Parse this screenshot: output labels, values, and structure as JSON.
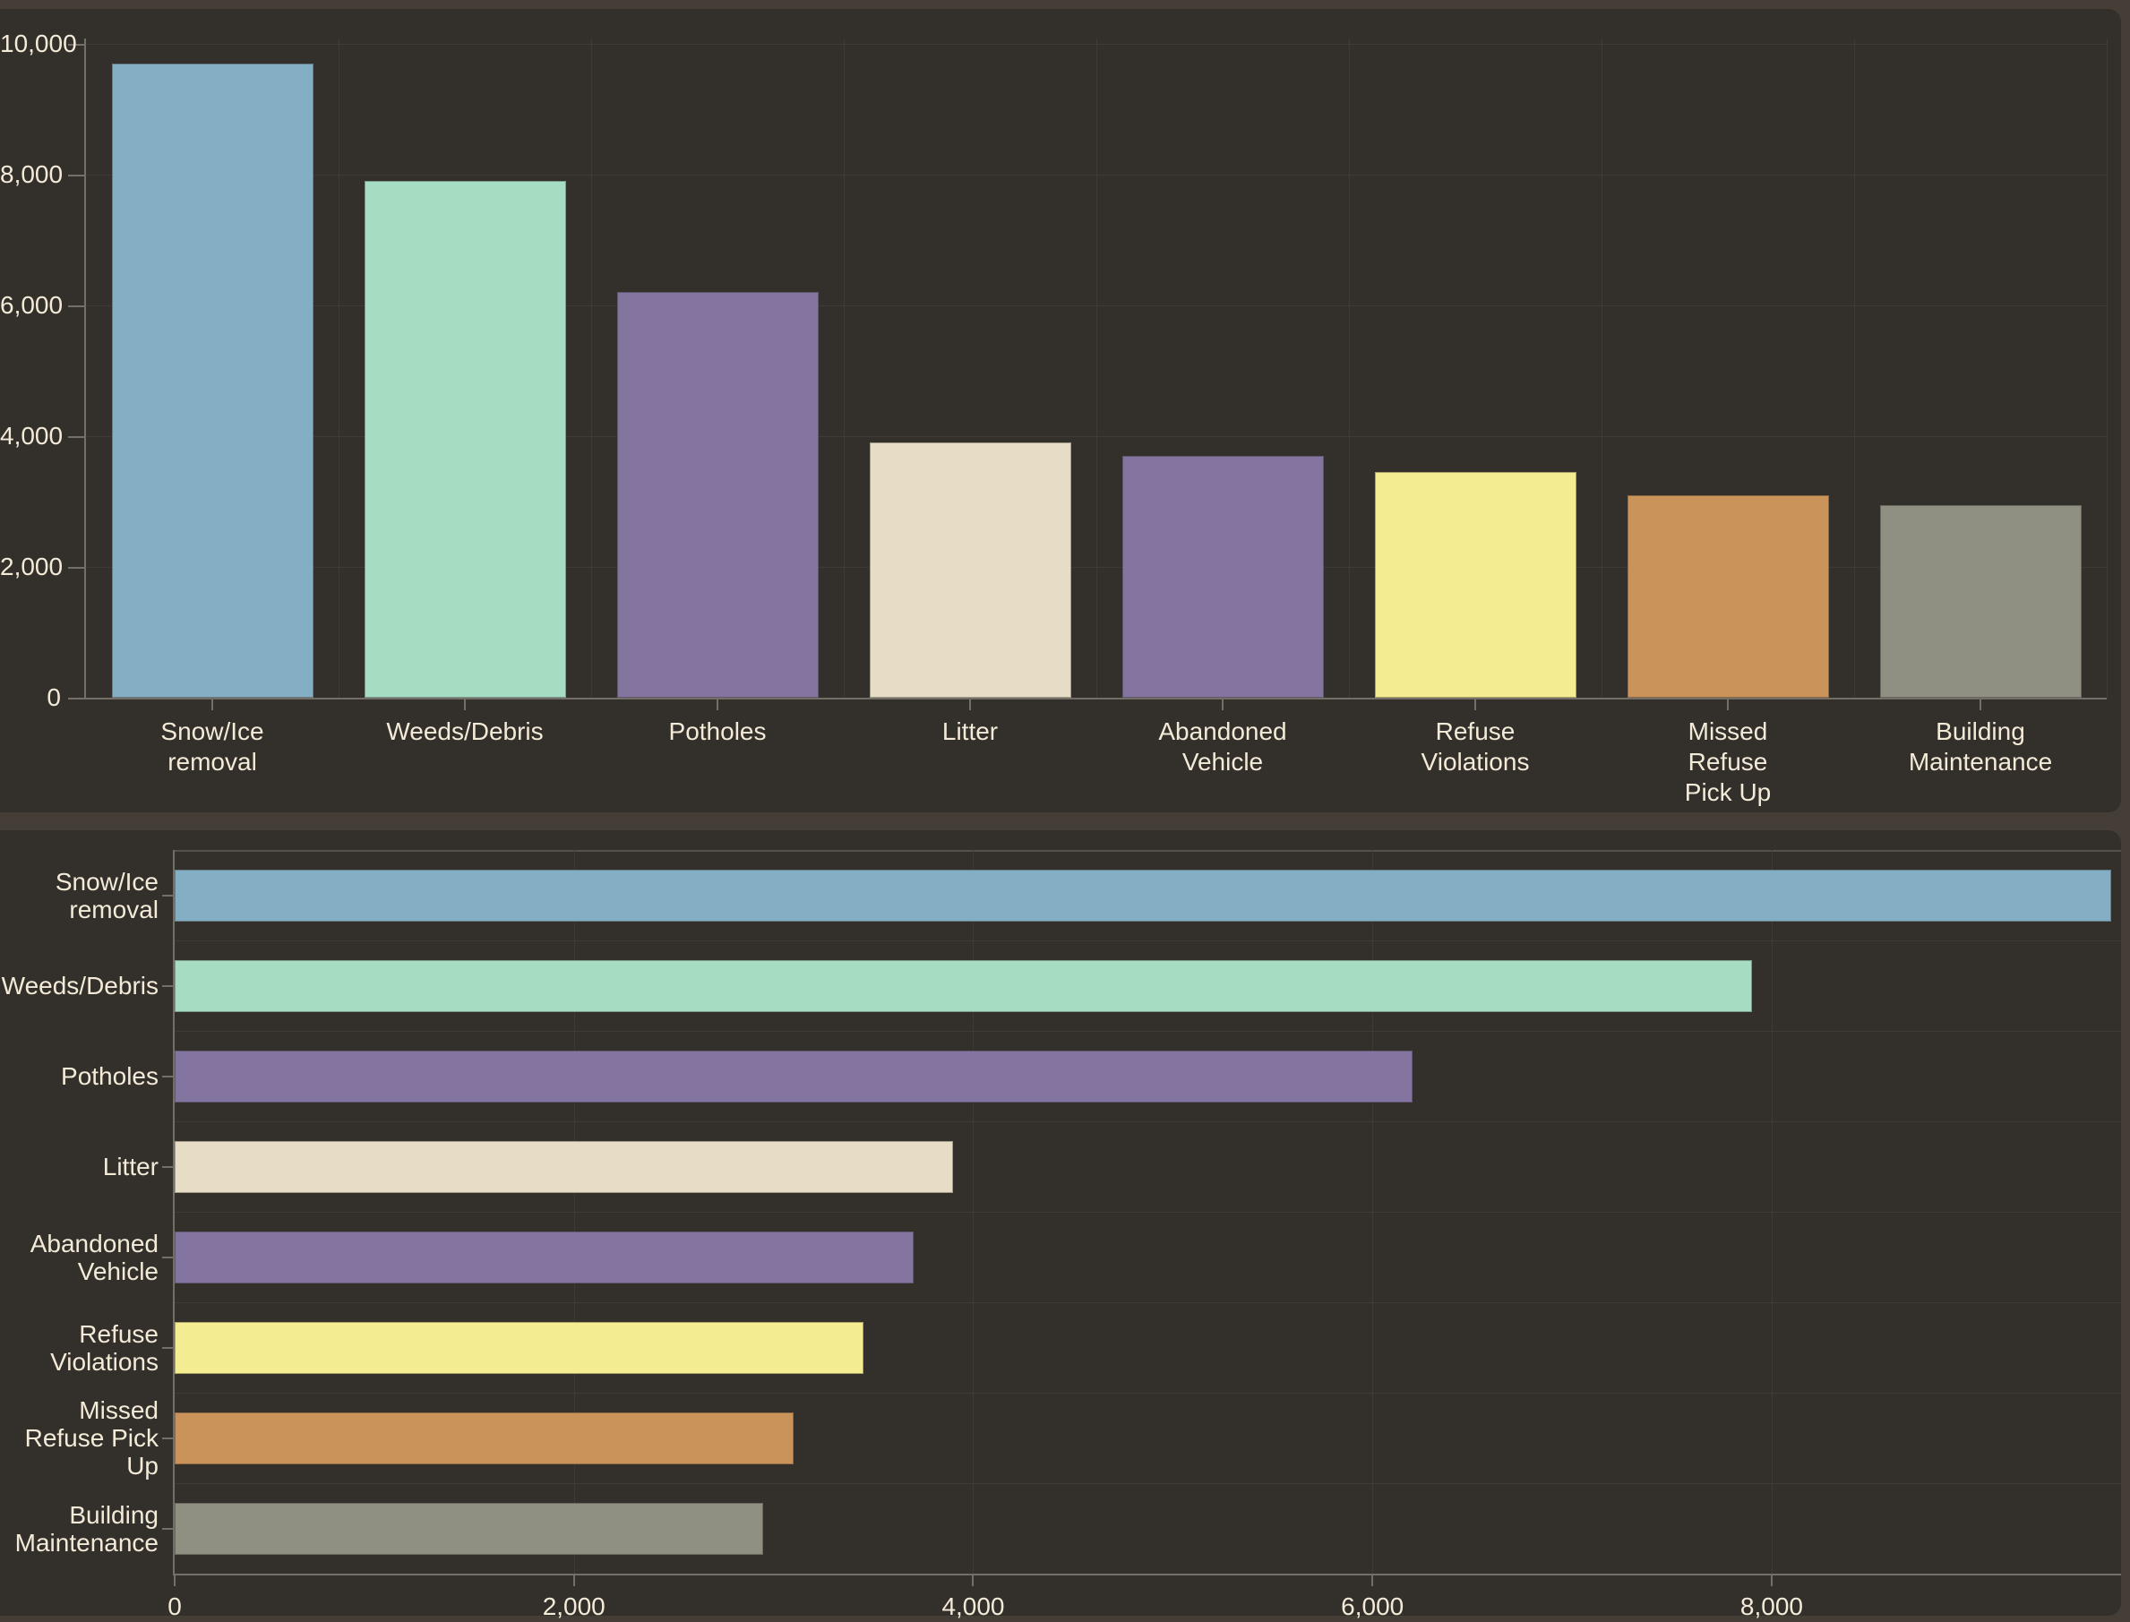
{
  "colors": {
    "background": "#453e37",
    "panel": "#332f2a",
    "gridline": "#3e3a34",
    "axis": "#74f066-placeholder-unused",
    "axis_line": "#746f66",
    "text": "#f3ead8"
  },
  "chart_data": [
    {
      "type": "bar",
      "orientation": "vertical",
      "title": "",
      "xlabel": "",
      "ylabel": "",
      "categories": [
        "Snow/Ice removal",
        "Weeds/Debris",
        "Potholes",
        "Litter",
        "Abandoned Vehicle",
        "Refuse Violations",
        "Missed Refuse Pick Up",
        "Building Maintenance"
      ],
      "category_label_lines": [
        [
          "Snow/Ice",
          "removal"
        ],
        [
          "Weeds/Debris"
        ],
        [
          "Potholes"
        ],
        [
          "Litter"
        ],
        [
          "Abandoned",
          "Vehicle"
        ],
        [
          "Refuse",
          "Violations"
        ],
        [
          "Missed",
          "Refuse",
          "Pick Up"
        ],
        [
          "Building",
          "Maintenance"
        ]
      ],
      "values": [
        9700,
        7900,
        6200,
        3900,
        3700,
        3450,
        3100,
        2950
      ],
      "bar_colors": [
        "#84aec3",
        "#a5dcc2",
        "#83759f",
        "#e7ddc7",
        "#83759f",
        "#f3ec90",
        "#c9935a",
        "#8f9082"
      ],
      "ylim": [
        0,
        10000
      ],
      "yticks": [
        0,
        2000,
        4000,
        6000,
        8000,
        10000
      ],
      "ytick_labels": [
        "0",
        "2,000",
        "4,000",
        "6,000",
        "8,000",
        "10,000"
      ],
      "grid": true,
      "legend": false
    },
    {
      "type": "bar",
      "orientation": "horizontal",
      "title": "",
      "xlabel": "",
      "ylabel": "",
      "categories": [
        "Snow/Ice removal",
        "Weeds/Debris",
        "Potholes",
        "Litter",
        "Abandoned Vehicle",
        "Refuse Violations",
        "Missed Refuse Pick Up",
        "Building Maintenance"
      ],
      "category_label_lines": [
        [
          "Snow/Ice",
          "removal"
        ],
        [
          "Weeds/Debris"
        ],
        [
          "Potholes"
        ],
        [
          "Litter"
        ],
        [
          "Abandoned",
          "Vehicle"
        ],
        [
          "Refuse",
          "Violations"
        ],
        [
          "Missed",
          "Refuse Pick",
          "Up"
        ],
        [
          "Building",
          "Maintenance"
        ]
      ],
      "values": [
        9700,
        7900,
        6200,
        3900,
        3700,
        3450,
        3100,
        2950
      ],
      "bar_colors": [
        "#84aec3",
        "#a5dcc2",
        "#83759f",
        "#e7ddc7",
        "#83759f",
        "#f3ec90",
        "#c9935a",
        "#8f9082"
      ],
      "xlim": [
        0,
        9750
      ],
      "xticks": [
        0,
        2000,
        4000,
        6000,
        8000
      ],
      "xtick_labels": [
        "0",
        "2,000",
        "4,000",
        "6,000",
        "8,000"
      ],
      "grid": true,
      "legend": false
    }
  ]
}
